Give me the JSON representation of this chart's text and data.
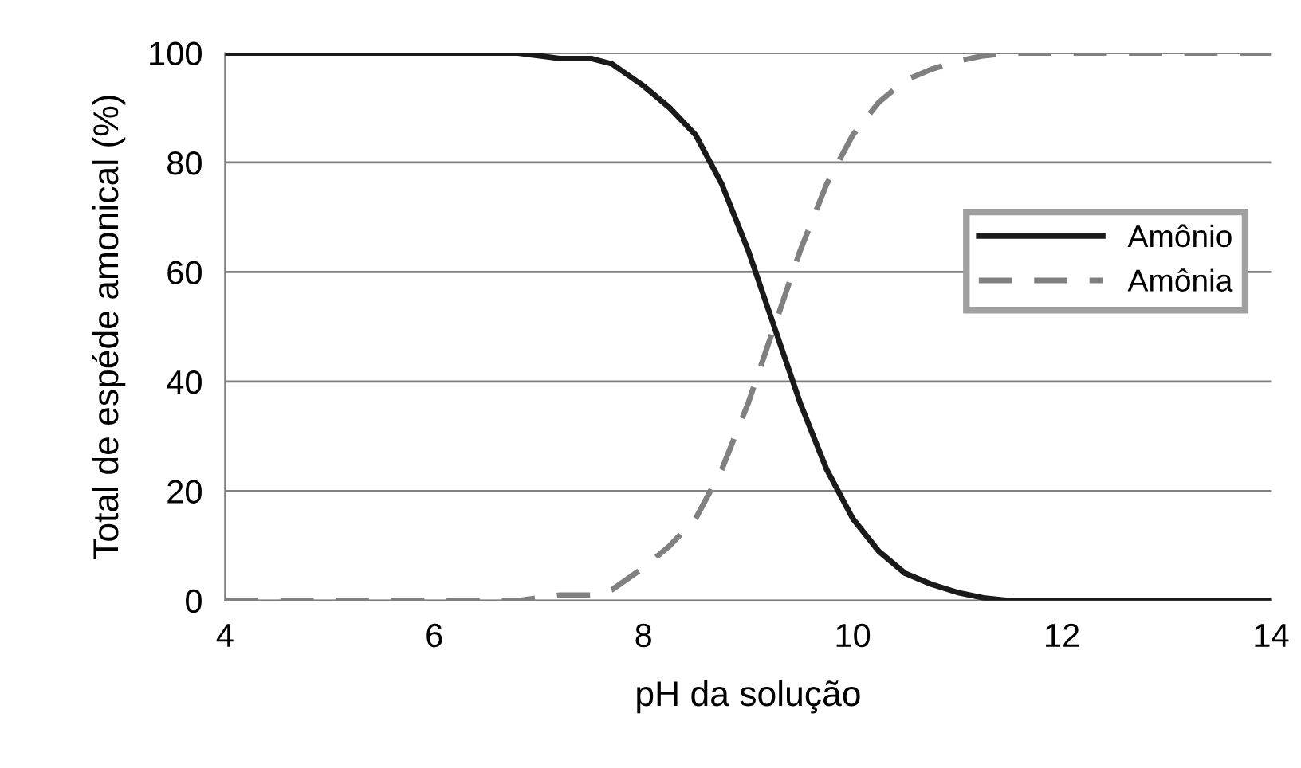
{
  "chart_data": {
    "type": "line",
    "xlabel": "pH da solução",
    "ylabel": "Total de espéde amonical (%)",
    "x": [
      4,
      5,
      6,
      6.8,
      7.2,
      7.5,
      7.7,
      8,
      8.25,
      8.5,
      8.75,
      9,
      9.25,
      9.5,
      9.75,
      10,
      10.25,
      10.5,
      10.75,
      11,
      11.25,
      11.5,
      12,
      13,
      14
    ],
    "series": [
      {
        "name": "Amônio",
        "color": "#1a1a1a",
        "line_style": "solid",
        "values": [
          100,
          100,
          100,
          100,
          99,
          99,
          98,
          94,
          90,
          85,
          76,
          64,
          50,
          36,
          24,
          15,
          9,
          5,
          3,
          1.5,
          0.5,
          0,
          0,
          0,
          0
        ]
      },
      {
        "name": "Amônia",
        "color": "#808080",
        "line_style": "dashed",
        "values": [
          0,
          0,
          0,
          0,
          1,
          1,
          2,
          6,
          10,
          15,
          24,
          36,
          50,
          64,
          76,
          85,
          91,
          95,
          97,
          98.5,
          99.5,
          100,
          100,
          100,
          100
        ]
      }
    ],
    "xlim": [
      4,
      14
    ],
    "xticks": [
      4,
      6,
      8,
      10,
      12,
      14
    ],
    "ylim": [
      0,
      100
    ],
    "yticks": [
      0,
      20,
      40,
      60,
      80,
      100
    ],
    "grid": "y",
    "legend": "right",
    "marker": "none"
  }
}
